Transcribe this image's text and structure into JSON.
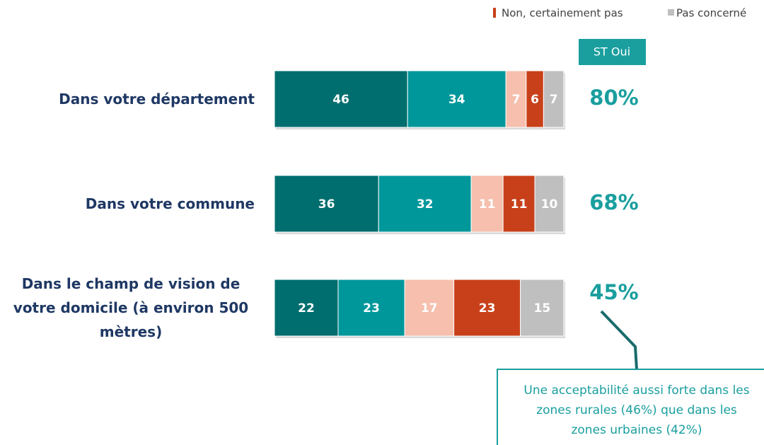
{
  "chart_data": {
    "type": "stacked_bar_horizontal",
    "categories": [
      "Dans votre département",
      "Dans votre commune",
      "Dans le champ de vision de votre domicile (à environ 500 mètres)"
    ],
    "series": [
      {
        "color": "#006e6e",
        "values": [
          46,
          36,
          22
        ]
      },
      {
        "color": "#00979b",
        "values": [
          34,
          32,
          23
        ]
      },
      {
        "color": "#f6bfae",
        "values": [
          7,
          11,
          17
        ]
      },
      {
        "name": "Non, certainement pas",
        "color": "#c8401a",
        "values": [
          6,
          11,
          23
        ]
      },
      {
        "name": "Pas concerné",
        "color": "#bfbfbf",
        "values": [
          7,
          10,
          15
        ]
      }
    ],
    "total_header": "ST Oui",
    "totals": {
      "values": [
        80,
        68,
        45
      ],
      "value_labels": [
        "80%",
        "68%",
        "45%"
      ]
    },
    "annotation": [
      "Une acceptabilité aussi forte dans les",
      "zones rurales (46%) que dans les",
      "zones urbaines (42%)"
    ]
  }
}
